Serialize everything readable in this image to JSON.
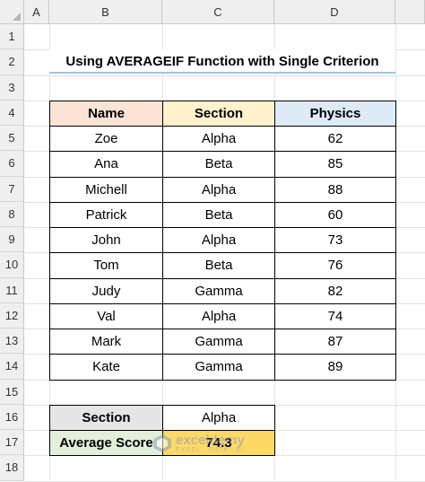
{
  "columns": [
    "A",
    "B",
    "C",
    "D"
  ],
  "rows": [
    "1",
    "2",
    "3",
    "4",
    "5",
    "6",
    "7",
    "8",
    "9",
    "10",
    "11",
    "12",
    "13",
    "14",
    "15",
    "16",
    "17",
    "18"
  ],
  "title": "Using AVERAGEIF Function with Single Criterion",
  "table": {
    "headers": [
      "Name",
      "Section",
      "Physics"
    ],
    "header_colors": [
      "#fbe4d5",
      "#fff2cc",
      "#deebf7"
    ],
    "rows": [
      [
        "Zoe",
        "Alpha",
        "62"
      ],
      [
        "Ana",
        "Beta",
        "85"
      ],
      [
        "Michell",
        "Alpha",
        "88"
      ],
      [
        "Patrick",
        "Beta",
        "60"
      ],
      [
        "John",
        "Alpha",
        "73"
      ],
      [
        "Tom",
        "Beta",
        "76"
      ],
      [
        "Judy",
        "Gamma",
        "82"
      ],
      [
        "Val",
        "Alpha",
        "74"
      ],
      [
        "Mark",
        "Gamma",
        "87"
      ],
      [
        "Kate",
        "Gamma",
        "89"
      ]
    ]
  },
  "criteria": {
    "section_label": "Section",
    "section_value": "Alpha",
    "avg_label": "Average Score",
    "avg_value": "74.3",
    "section_label_color": "#e7e6e6",
    "avg_label_color": "#e2efda",
    "avg_value_color": "#ffd966"
  },
  "watermark": {
    "name": "exceldemy",
    "sub": "EXCEL · DATA · BI",
    "icon": "exceldemy-logo-icon"
  }
}
